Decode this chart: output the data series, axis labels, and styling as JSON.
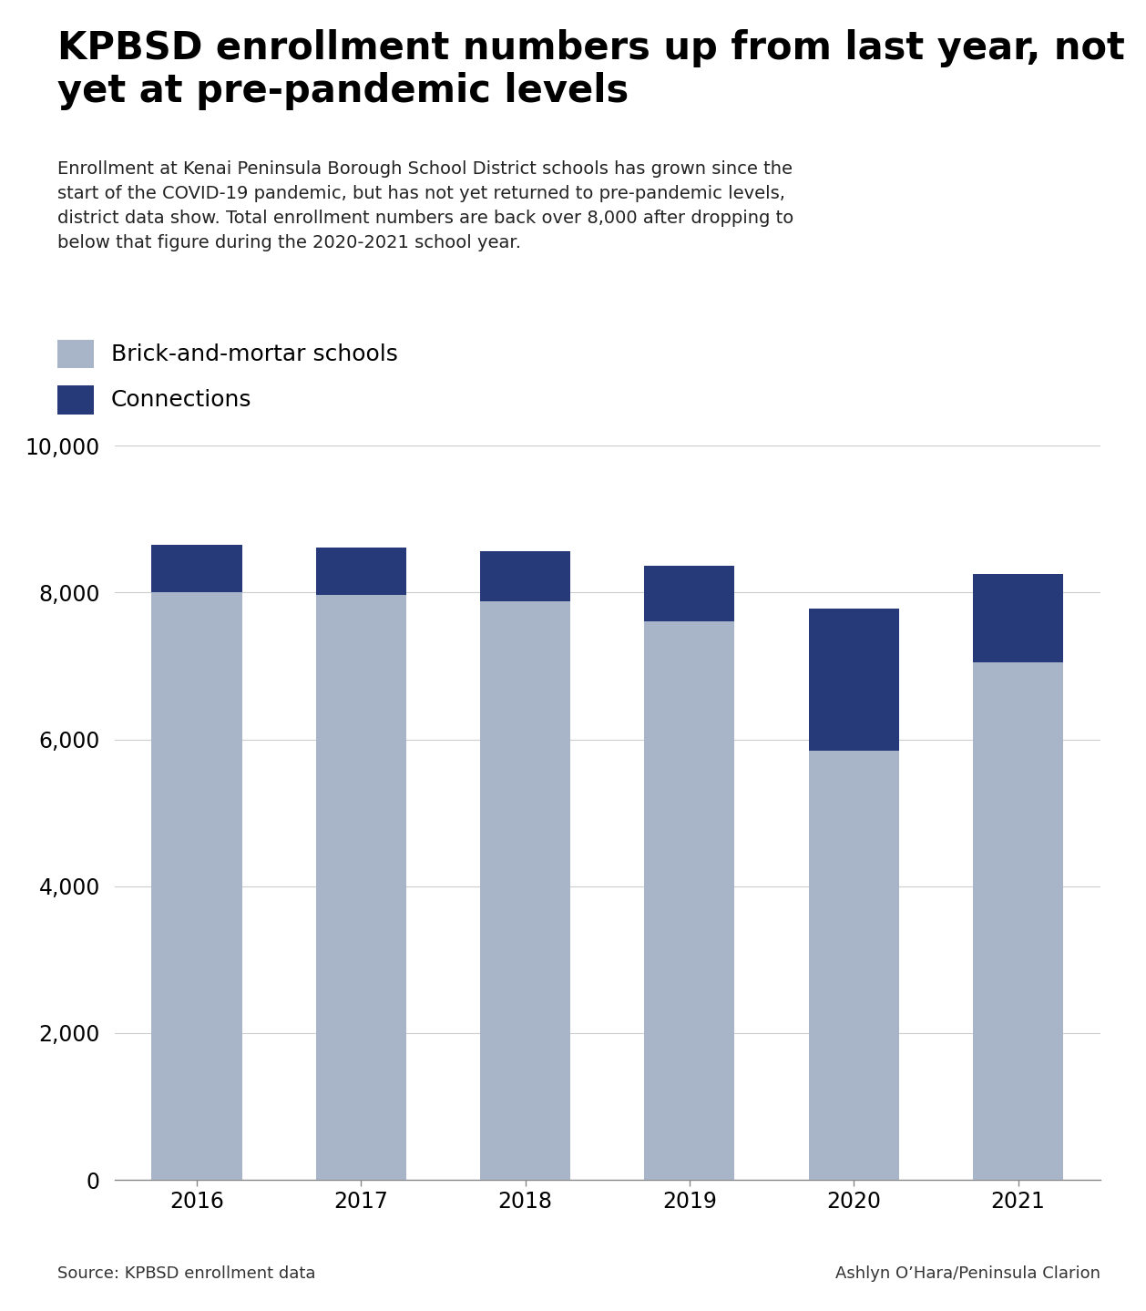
{
  "years": [
    "2016",
    "2017",
    "2018",
    "2019",
    "2020",
    "2021"
  ],
  "brick_mortar": [
    8000,
    7970,
    7880,
    7610,
    5850,
    7050
  ],
  "connections": [
    650,
    640,
    680,
    760,
    1930,
    1200
  ],
  "brick_color": "#a8b4c8",
  "connections_color": "#263a7a",
  "ylim": [
    0,
    10000
  ],
  "yticks": [
    0,
    2000,
    4000,
    6000,
    8000,
    10000
  ],
  "title": "KPBSD enrollment numbers up from last year, not\nyet at pre-pandemic levels",
  "subtitle": "Enrollment at Kenai Peninsula Borough School District schools has grown since the\nstart of the COVID-19 pandemic, but has not yet returned to pre-pandemic levels,\ndistrict data show. Total enrollment numbers are back over 8,000 after dropping to\nbelow that figure during the 2020-2021 school year.",
  "legend_label1": "Brick-and-mortar schools",
  "legend_label2": "Connections",
  "source_text": "Source: KPBSD enrollment data",
  "credit_text": "Ashlyn O’Hara/Peninsula Clarion",
  "background_color": "#ffffff"
}
